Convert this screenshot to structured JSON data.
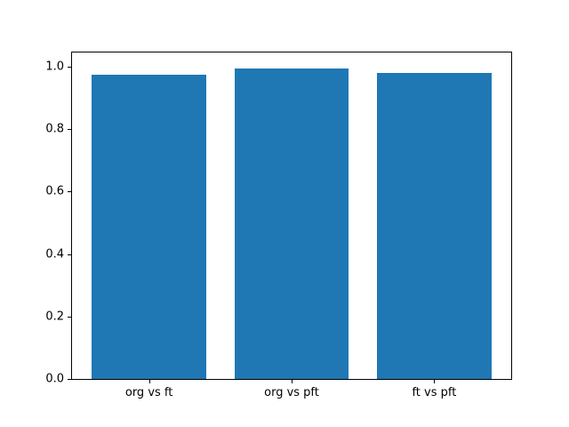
{
  "chart_data": {
    "type": "bar",
    "categories": [
      "org vs ft",
      "org vs pft",
      "ft vs pft"
    ],
    "values": [
      0.975,
      0.995,
      0.98
    ],
    "title": "",
    "xlabel": "",
    "ylabel": "",
    "ylim": [
      0,
      1.045
    ],
    "xlim": [
      -0.54,
      2.54
    ],
    "bar_width": 0.8,
    "yticks": [
      0.0,
      0.2,
      0.4,
      0.6,
      0.8,
      1.0
    ],
    "ytick_labels": [
      "0.0",
      "0.2",
      "0.4",
      "0.6",
      "0.8",
      "1.0"
    ],
    "bar_color": "#1f77b4",
    "grid": false,
    "legend": null
  },
  "figure": {
    "background": "#ffffff",
    "axes_border_color": "#000000"
  }
}
